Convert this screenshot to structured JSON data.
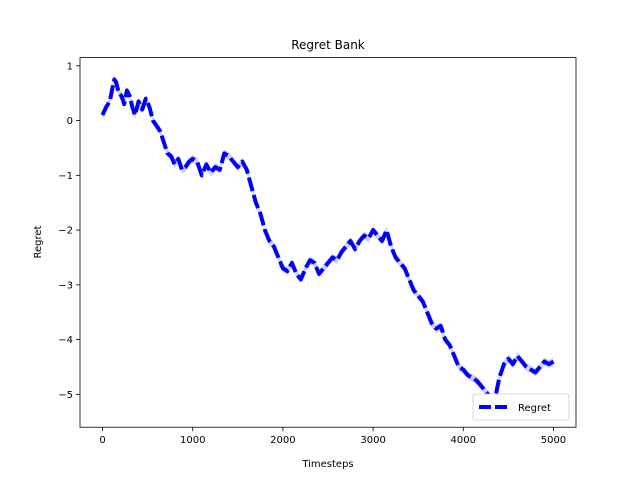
{
  "chart_data": {
    "type": "line",
    "title": "Regret Bank",
    "xlabel": "Timesteps",
    "ylabel": "Regret",
    "xlim": [
      -250,
      5250
    ],
    "ylim": [
      -5.6,
      1.15
    ],
    "xticks": [
      0,
      1000,
      2000,
      3000,
      4000,
      5000
    ],
    "yticks": [
      1,
      0,
      -1,
      -2,
      -3,
      -4,
      -5
    ],
    "ytick_labels": [
      "1",
      "0",
      "−1",
      "−2",
      "−3",
      "−4",
      "−5"
    ],
    "grid": false,
    "legend_position": "lower-right",
    "series": [
      {
        "name": "Regret",
        "color": "#0000ff",
        "linestyle": "dashed",
        "band_color": "#b3b3ff",
        "x": [
          0,
          40,
          80,
          110,
          130,
          150,
          180,
          210,
          240,
          270,
          300,
          330,
          360,
          400,
          440,
          480,
          520,
          560,
          600,
          640,
          680,
          720,
          760,
          800,
          840,
          880,
          920,
          960,
          1000,
          1050,
          1100,
          1150,
          1200,
          1250,
          1300,
          1350,
          1400,
          1450,
          1500,
          1550,
          1600,
          1650,
          1700,
          1750,
          1800,
          1850,
          1900,
          1950,
          2000,
          2050,
          2100,
          2150,
          2200,
          2250,
          2300,
          2350,
          2400,
          2450,
          2500,
          2550,
          2600,
          2650,
          2700,
          2750,
          2800,
          2850,
          2900,
          2950,
          3000,
          3050,
          3100,
          3150,
          3200,
          3250,
          3300,
          3350,
          3400,
          3450,
          3500,
          3550,
          3600,
          3650,
          3700,
          3750,
          3800,
          3850,
          3900,
          3950,
          4000,
          4050,
          4100,
          4150,
          4200,
          4250,
          4300,
          4350,
          4400,
          4450,
          4500,
          4550,
          4600,
          4650,
          4700,
          4750,
          4800,
          4850,
          4900,
          4950,
          5000
        ],
        "values": [
          0.1,
          0.25,
          0.35,
          0.6,
          0.75,
          0.7,
          0.5,
          0.45,
          0.3,
          0.55,
          0.45,
          0.25,
          0.1,
          0.35,
          0.2,
          0.4,
          0.25,
          0.0,
          -0.1,
          -0.2,
          -0.4,
          -0.6,
          -0.65,
          -0.8,
          -0.7,
          -0.9,
          -0.85,
          -0.75,
          -0.7,
          -0.75,
          -1.0,
          -0.8,
          -0.95,
          -0.85,
          -0.9,
          -0.6,
          -0.65,
          -0.75,
          -0.85,
          -0.75,
          -0.9,
          -1.2,
          -1.5,
          -1.7,
          -2.0,
          -2.2,
          -2.3,
          -2.5,
          -2.7,
          -2.75,
          -2.6,
          -2.8,
          -2.9,
          -2.7,
          -2.55,
          -2.6,
          -2.8,
          -2.7,
          -2.6,
          -2.5,
          -2.55,
          -2.4,
          -2.3,
          -2.2,
          -2.35,
          -2.2,
          -2.1,
          -2.15,
          -2.0,
          -2.1,
          -2.2,
          -2.0,
          -2.3,
          -2.5,
          -2.6,
          -2.7,
          -2.9,
          -3.1,
          -3.2,
          -3.3,
          -3.5,
          -3.7,
          -3.8,
          -3.75,
          -4.0,
          -4.1,
          -4.3,
          -4.5,
          -4.55,
          -4.65,
          -4.7,
          -4.75,
          -4.85,
          -4.95,
          -5.05,
          -5.1,
          -4.7,
          -4.45,
          -4.35,
          -4.45,
          -4.3,
          -4.4,
          -4.5,
          -4.55,
          -4.6,
          -4.5,
          -4.4,
          -4.45,
          -4.4
        ]
      }
    ]
  }
}
